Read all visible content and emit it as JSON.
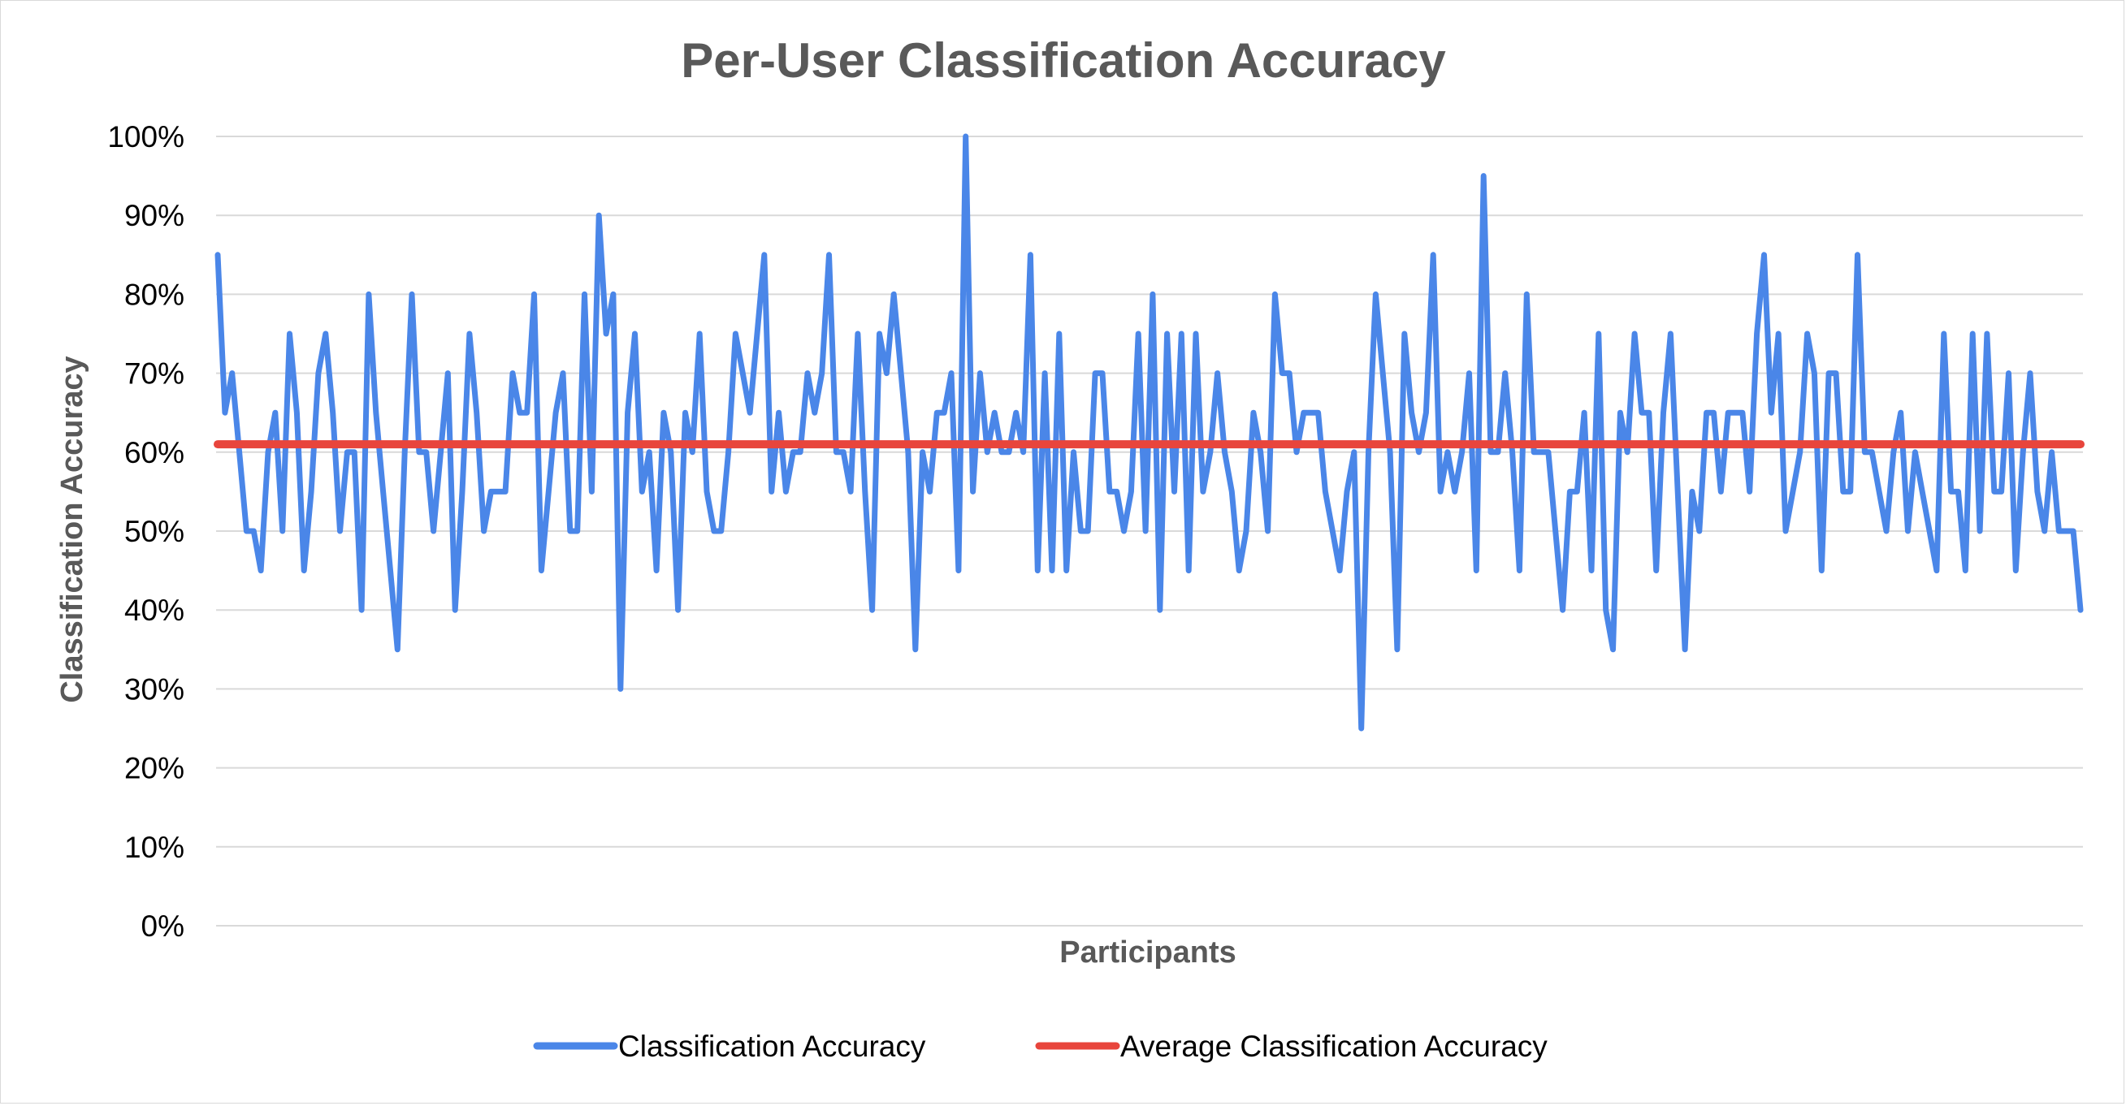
{
  "chart_data": {
    "type": "line",
    "title": "Per-User Classification Accuracy",
    "xlabel": "Participants",
    "ylabel": "Classification Accuracy",
    "ylim": [
      0,
      100
    ],
    "y_unit": "%",
    "y_ticks": [
      "0%",
      "10%",
      "20%",
      "30%",
      "40%",
      "50%",
      "60%",
      "70%",
      "80%",
      "90%",
      "100%"
    ],
    "grid": true,
    "legend_position": "bottom",
    "series": [
      {
        "name": "Classification Accuracy",
        "color": "#4a86e8",
        "values": [
          85,
          65,
          70,
          60,
          50,
          50,
          45,
          60,
          65,
          50,
          75,
          65,
          45,
          55,
          70,
          75,
          65,
          50,
          60,
          60,
          40,
          80,
          65,
          55,
          45,
          35,
          60,
          80,
          60,
          60,
          50,
          60,
          70,
          40,
          55,
          75,
          65,
          50,
          55,
          55,
          55,
          70,
          65,
          65,
          80,
          45,
          55,
          65,
          70,
          50,
          50,
          80,
          55,
          90,
          75,
          80,
          30,
          65,
          75,
          55,
          60,
          45,
          65,
          60,
          40,
          65,
          60,
          75,
          55,
          50,
          50,
          60,
          75,
          70,
          65,
          75,
          85,
          55,
          65,
          55,
          60,
          60,
          70,
          65,
          70,
          85,
          60,
          60,
          55,
          75,
          55,
          40,
          75,
          70,
          80,
          70,
          60,
          35,
          60,
          55,
          65,
          65,
          70,
          45,
          100,
          55,
          70,
          60,
          65,
          60,
          60,
          65,
          60,
          85,
          45,
          70,
          45,
          75,
          45,
          60,
          50,
          50,
          70,
          70,
          55,
          55,
          50,
          55,
          75,
          50,
          80,
          40,
          75,
          55,
          75,
          45,
          75,
          55,
          60,
          70,
          60,
          55,
          45,
          50,
          65,
          60,
          50,
          80,
          70,
          70,
          60,
          65,
          65,
          65,
          55,
          50,
          45,
          55,
          60,
          25,
          60,
          80,
          70,
          60,
          35,
          75,
          65,
          60,
          65,
          85,
          55,
          60,
          55,
          60,
          70,
          45,
          95,
          60,
          60,
          70,
          60,
          45,
          80,
          60,
          60,
          60,
          50,
          40,
          55,
          55,
          65,
          45,
          75,
          40,
          35,
          65,
          60,
          75,
          65,
          65,
          45,
          65,
          75,
          55,
          35,
          55,
          50,
          65,
          65,
          55,
          65,
          65,
          65,
          55,
          75,
          85,
          65,
          75,
          50,
          55,
          60,
          75,
          70,
          45,
          70,
          70,
          55,
          55,
          85,
          60,
          60,
          55,
          50,
          60,
          65,
          50,
          60,
          55,
          50,
          45,
          75,
          55,
          55,
          45,
          75,
          50,
          75,
          55,
          55,
          70,
          45,
          60,
          70,
          55,
          50,
          60,
          50,
          50,
          50,
          40
        ]
      },
      {
        "name": "Average Classification Accuracy",
        "color": "#e8453c",
        "values": [
          61,
          61
        ]
      }
    ]
  }
}
